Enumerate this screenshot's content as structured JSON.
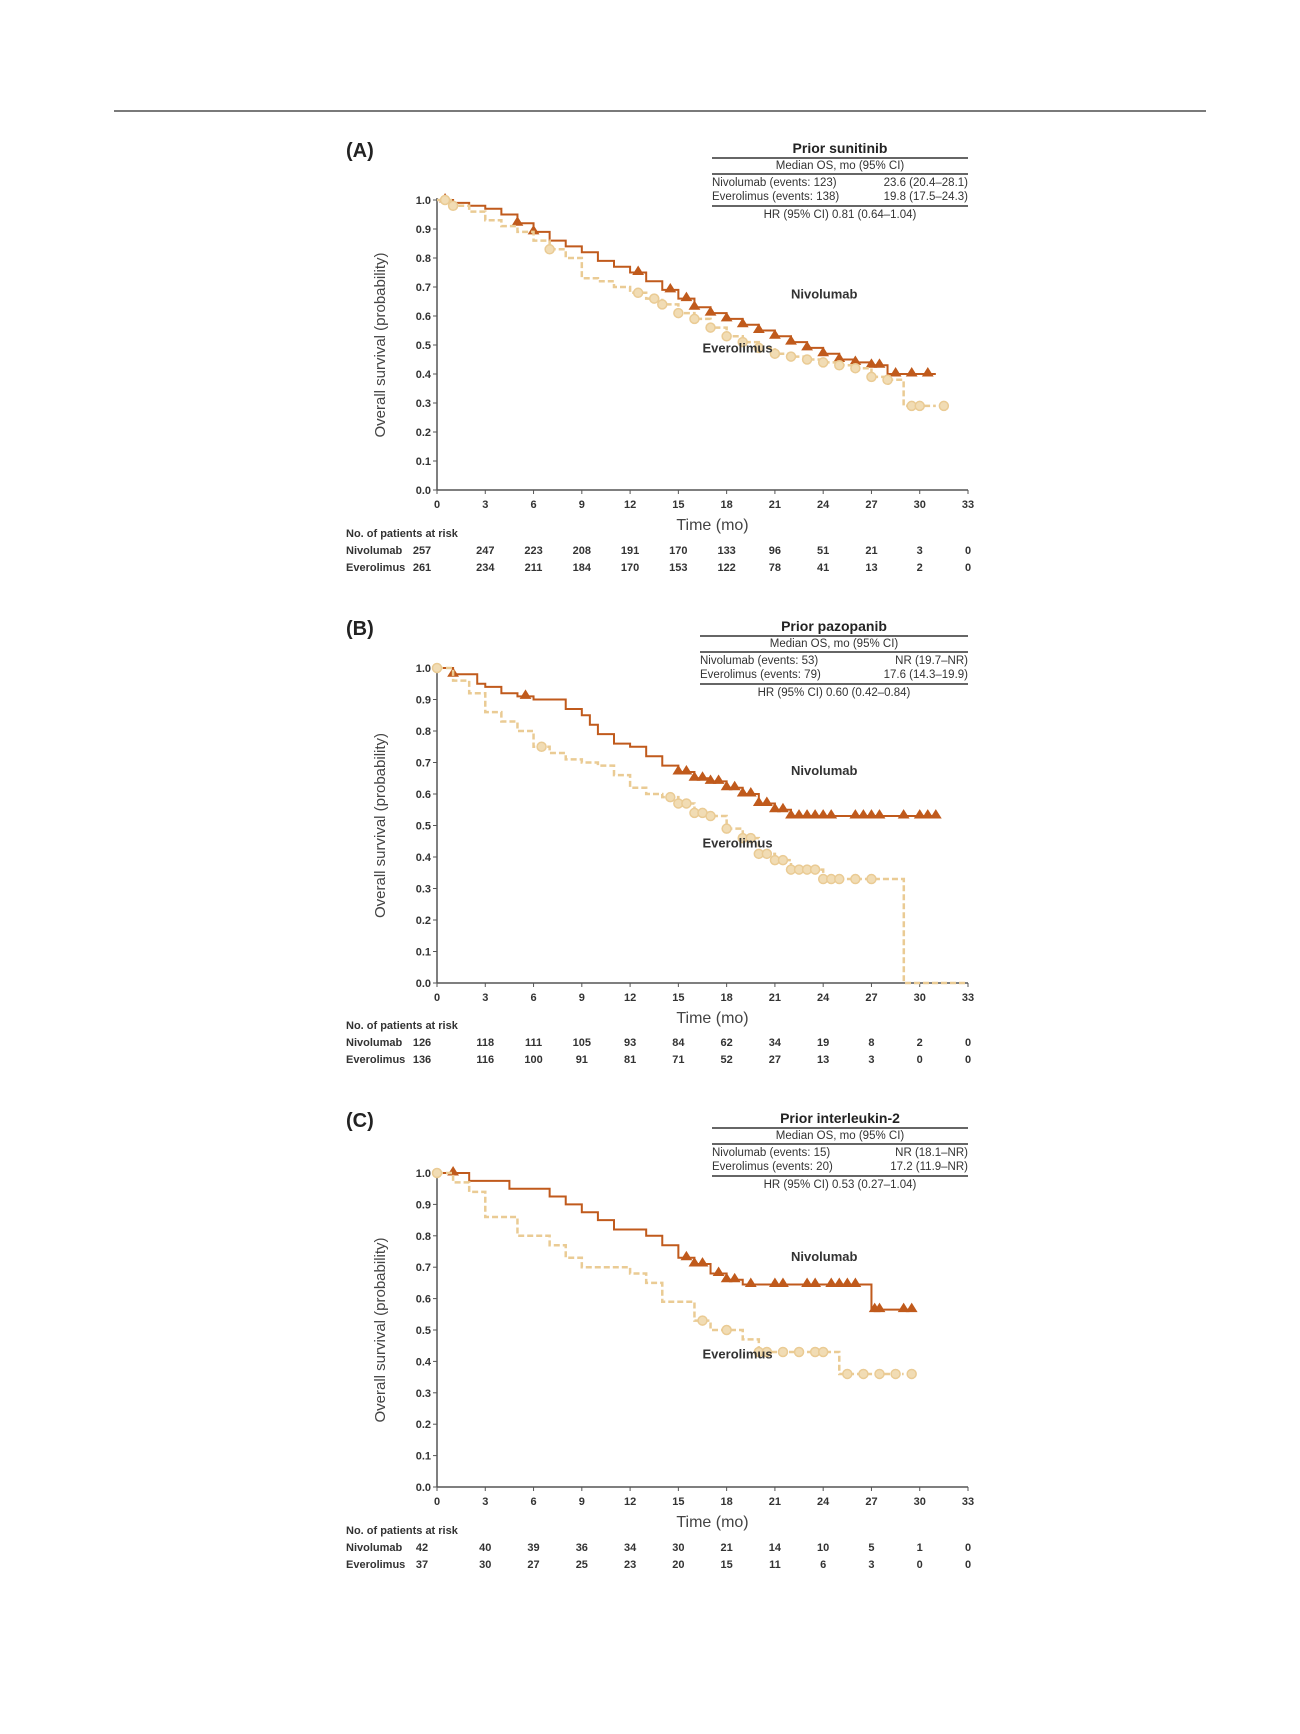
{
  "colors": {
    "nivolumab": "#c05a1c",
    "everolimus": "#eacb94",
    "axis": "#555555",
    "text": "#333333"
  },
  "panels": [
    {
      "letter": "(A)",
      "stats": {
        "title": "Prior sunitinib",
        "subtitle": "Median OS, mo (95% CI)",
        "rows": [
          {
            "label": "Nivolumab (events: 123)",
            "value": "23.6 (20.4–28.1)"
          },
          {
            "label": "Everolimus (events: 138)",
            "value": "19.8 (17.5–24.3)"
          }
        ],
        "hr": "HR (95% CI) 0.81 (0.64–1.04)"
      },
      "risk": {
        "title": "No. of patients at risk",
        "rows": [
          {
            "name": "Nivolumab",
            "values": [
              "257",
              "247",
              "223",
              "208",
              "191",
              "170",
              "133",
              "96",
              "51",
              "21",
              "3",
              "0"
            ]
          },
          {
            "name": "Everolimus",
            "values": [
              "261",
              "234",
              "211",
              "184",
              "170",
              "153",
              "122",
              "78",
              "41",
              "13",
              "2",
              "0"
            ]
          }
        ]
      }
    },
    {
      "letter": "(B)",
      "stats": {
        "title": "Prior pazopanib",
        "subtitle": "Median OS, mo (95% CI)",
        "rows": [
          {
            "label": "Nivolumab (events: 53)",
            "value": "NR (19.7–NR)"
          },
          {
            "label": "Everolimus (events: 79)",
            "value": "17.6 (14.3–19.9)"
          }
        ],
        "hr": "HR (95% CI) 0.60 (0.42–0.84)"
      },
      "risk": {
        "title": "No. of patients at risk",
        "rows": [
          {
            "name": "Nivolumab",
            "values": [
              "126",
              "118",
              "111",
              "105",
              "93",
              "84",
              "62",
              "34",
              "19",
              "8",
              "2",
              "0"
            ]
          },
          {
            "name": "Everolimus",
            "values": [
              "136",
              "116",
              "100",
              "91",
              "81",
              "71",
              "52",
              "27",
              "13",
              "3",
              "0",
              "0"
            ]
          }
        ]
      }
    },
    {
      "letter": "(C)",
      "stats": {
        "title": "Prior interleukin-2",
        "subtitle": "Median OS, mo (95% CI)",
        "rows": [
          {
            "label": "Nivolumab (events: 15)",
            "value": "NR (18.1–NR)"
          },
          {
            "label": "Everolimus (events: 20)",
            "value": "17.2 (11.9–NR)"
          }
        ],
        "hr": "HR (95% CI) 0.53 (0.27–1.04)"
      },
      "risk": {
        "title": "No. of patients at risk",
        "rows": [
          {
            "name": "Nivolumab",
            "values": [
              "42",
              "40",
              "39",
              "36",
              "34",
              "30",
              "21",
              "14",
              "10",
              "5",
              "1",
              "0"
            ]
          },
          {
            "name": "Everolimus",
            "values": [
              "37",
              "30",
              "27",
              "25",
              "23",
              "20",
              "15",
              "11",
              "6",
              "3",
              "0",
              "0"
            ]
          }
        ]
      }
    }
  ],
  "chart_data": [
    {
      "type": "line",
      "title": "Prior sunitinib",
      "xlabel": "Time (mo)",
      "ylabel": "Overall survival (probability)",
      "xlim": [
        0,
        33
      ],
      "ylim": [
        0,
        1.0
      ],
      "xticks": [
        "0",
        "3",
        "6",
        "9",
        "12",
        "15",
        "18",
        "21",
        "24",
        "27",
        "30",
        "33"
      ],
      "yticks": [
        "0.0",
        "0.1",
        "0.2",
        "0.3",
        "0.4",
        "0.5",
        "0.6",
        "0.7",
        "0.8",
        "0.9",
        "1.0"
      ],
      "grid": false,
      "annotations": [
        {
          "text": "Nivolumab",
          "x": 22,
          "y": 0.66
        },
        {
          "text": "Everolimus",
          "x": 16.5,
          "y": 0.475
        }
      ],
      "series": [
        {
          "name": "Nivolumab",
          "style": "solid",
          "marker": "triangle",
          "x": [
            0,
            1,
            2,
            3,
            4,
            5,
            6,
            7,
            8,
            9,
            10,
            11,
            12,
            13,
            14,
            15,
            16,
            17,
            18,
            19,
            20,
            21,
            22,
            23,
            24,
            25,
            26,
            27,
            28,
            29,
            30,
            31
          ],
          "y": [
            1.0,
            0.99,
            0.98,
            0.97,
            0.95,
            0.92,
            0.89,
            0.86,
            0.84,
            0.82,
            0.79,
            0.77,
            0.75,
            0.72,
            0.69,
            0.66,
            0.63,
            0.61,
            0.59,
            0.57,
            0.55,
            0.53,
            0.51,
            0.49,
            0.47,
            0.45,
            0.44,
            0.43,
            0.4,
            0.4,
            0.4,
            0.4
          ],
          "censor_x": [
            0.5,
            5,
            6,
            12.5,
            14.5,
            15.5,
            16,
            17,
            18,
            19,
            20,
            21,
            22,
            23,
            24,
            25,
            26,
            27,
            27.5,
            28.5,
            29.5,
            30.5
          ]
        },
        {
          "name": "Everolimus",
          "style": "dashed",
          "marker": "circle",
          "x": [
            0,
            1,
            2,
            3,
            4,
            5,
            6,
            7,
            8,
            9,
            10,
            11,
            12,
            13,
            14,
            15,
            16,
            17,
            18,
            19,
            20,
            21,
            22,
            23,
            24,
            25,
            26,
            27,
            28,
            28.5,
            29,
            30,
            31
          ],
          "y": [
            1.0,
            0.98,
            0.96,
            0.93,
            0.91,
            0.89,
            0.86,
            0.83,
            0.8,
            0.73,
            0.72,
            0.7,
            0.68,
            0.66,
            0.64,
            0.61,
            0.59,
            0.56,
            0.53,
            0.51,
            0.49,
            0.47,
            0.46,
            0.45,
            0.44,
            0.43,
            0.42,
            0.39,
            0.38,
            0.38,
            0.29,
            0.29,
            0.29
          ],
          "censor_x": [
            0.5,
            1,
            7,
            12.5,
            13.5,
            14,
            15,
            16,
            17,
            18,
            19,
            20,
            21,
            22,
            23,
            24,
            25,
            26,
            27,
            28,
            29.5,
            30,
            31.5
          ]
        }
      ]
    },
    {
      "type": "line",
      "title": "Prior pazopanib",
      "xlabel": "Time (mo)",
      "ylabel": "Overall survival (probability)",
      "xlim": [
        0,
        33
      ],
      "ylim": [
        0,
        1.0
      ],
      "xticks": [
        "0",
        "3",
        "6",
        "9",
        "12",
        "15",
        "18",
        "21",
        "24",
        "27",
        "30",
        "33"
      ],
      "yticks": [
        "0.0",
        "0.1",
        "0.2",
        "0.3",
        "0.4",
        "0.5",
        "0.6",
        "0.7",
        "0.8",
        "0.9",
        "1.0"
      ],
      "grid": false,
      "annotations": [
        {
          "text": "Nivolumab",
          "x": 22,
          "y": 0.66
        },
        {
          "text": "Everolimus",
          "x": 16.5,
          "y": 0.43
        }
      ],
      "series": [
        {
          "name": "Nivolumab",
          "style": "solid",
          "marker": "triangle",
          "x": [
            0,
            1,
            2,
            2.5,
            3,
            4,
            5,
            6,
            7,
            8,
            9,
            9.5,
            10,
            11,
            12,
            13,
            14,
            15,
            16,
            17,
            18,
            19,
            20,
            21,
            22,
            25,
            28,
            31
          ],
          "y": [
            1.0,
            0.98,
            0.98,
            0.95,
            0.94,
            0.92,
            0.91,
            0.9,
            0.9,
            0.87,
            0.85,
            0.82,
            0.79,
            0.76,
            0.75,
            0.72,
            0.69,
            0.67,
            0.65,
            0.64,
            0.62,
            0.6,
            0.57,
            0.55,
            0.53,
            0.53,
            0.53,
            0.53
          ],
          "censor_x": [
            1,
            5.5,
            15,
            15.5,
            16,
            16.5,
            17,
            17.5,
            18,
            18.5,
            19,
            19.5,
            20,
            20.5,
            21,
            21.5,
            22,
            22.5,
            23,
            23.5,
            24,
            24.5,
            26,
            26.5,
            27,
            27.5,
            29,
            30,
            30.5,
            31
          ]
        },
        {
          "name": "Everolimus",
          "style": "dashed",
          "marker": "circle",
          "x": [
            0,
            1,
            2,
            3,
            4,
            5,
            6,
            7,
            8,
            9,
            10,
            11,
            12,
            13,
            14,
            15,
            16,
            17,
            18,
            19,
            20,
            21,
            22,
            24,
            27,
            29,
            29.01,
            33
          ],
          "y": [
            1.0,
            0.96,
            0.92,
            0.86,
            0.83,
            0.8,
            0.75,
            0.73,
            0.71,
            0.7,
            0.69,
            0.66,
            0.62,
            0.6,
            0.59,
            0.57,
            0.54,
            0.53,
            0.49,
            0.46,
            0.41,
            0.39,
            0.36,
            0.33,
            0.33,
            0.33,
            0.0,
            0.0
          ],
          "censor_x": [
            0,
            6.5,
            14.5,
            15,
            15.5,
            16,
            16.5,
            17,
            18,
            19,
            19.5,
            20,
            20.5,
            21,
            21.5,
            22,
            22.5,
            23,
            23.5,
            24,
            24.5,
            25,
            26,
            27
          ]
        }
      ]
    },
    {
      "type": "line",
      "title": "Prior interleukin-2",
      "xlabel": "Time (mo)",
      "ylabel": "Overall survival (probability)",
      "xlim": [
        0,
        33
      ],
      "ylim": [
        0,
        1.0
      ],
      "xticks": [
        "0",
        "3",
        "6",
        "9",
        "12",
        "15",
        "18",
        "21",
        "24",
        "27",
        "30",
        "33"
      ],
      "yticks": [
        "0.0",
        "0.1",
        "0.2",
        "0.3",
        "0.4",
        "0.5",
        "0.6",
        "0.7",
        "0.8",
        "0.9",
        "1.0"
      ],
      "grid": false,
      "annotations": [
        {
          "text": "Nivolumab",
          "x": 22,
          "y": 0.72
        },
        {
          "text": "Everolimus",
          "x": 16.5,
          "y": 0.41
        }
      ],
      "series": [
        {
          "name": "Nivolumab",
          "style": "solid",
          "marker": "triangle",
          "x": [
            0,
            2,
            4.5,
            7,
            8,
            9,
            10,
            11,
            13,
            14,
            15,
            16,
            17,
            18,
            19,
            20,
            22,
            24,
            26,
            27,
            28,
            29.5
          ],
          "y": [
            1.0,
            0.975,
            0.95,
            0.925,
            0.9,
            0.875,
            0.85,
            0.82,
            0.8,
            0.77,
            0.73,
            0.71,
            0.68,
            0.66,
            0.645,
            0.645,
            0.645,
            0.645,
            0.645,
            0.565,
            0.565,
            0.565
          ],
          "censor_x": [
            1,
            15.5,
            16,
            16.5,
            17.5,
            18,
            18.5,
            19.5,
            21,
            21.5,
            23,
            23.5,
            24.5,
            25,
            25.5,
            26,
            27.2,
            27.5,
            29,
            29.5
          ]
        },
        {
          "name": "Everolimus",
          "style": "dashed",
          "marker": "circle",
          "x": [
            0,
            1,
            2,
            3,
            4,
            5,
            6,
            7,
            8,
            9,
            11,
            12,
            13,
            14,
            15,
            16,
            17,
            18,
            19,
            20,
            21,
            22,
            23,
            24,
            25,
            27,
            29
          ],
          "y": [
            1.0,
            0.97,
            0.94,
            0.86,
            0.86,
            0.8,
            0.8,
            0.77,
            0.73,
            0.7,
            0.7,
            0.68,
            0.65,
            0.59,
            0.59,
            0.53,
            0.5,
            0.5,
            0.47,
            0.43,
            0.43,
            0.43,
            0.43,
            0.43,
            0.36,
            0.36,
            0.36
          ],
          "censor_x": [
            0,
            16.5,
            18,
            20,
            20.5,
            21.5,
            22.5,
            23.5,
            24,
            25.5,
            26.5,
            27.5,
            28.5,
            29.5
          ]
        }
      ]
    }
  ]
}
